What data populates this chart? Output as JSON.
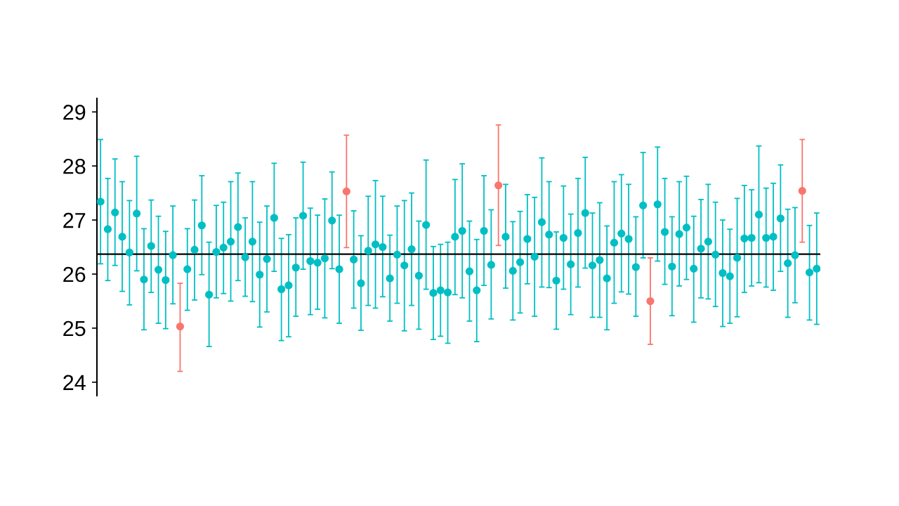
{
  "chart_data": {
    "type": "scatter",
    "categories": [
      null,
      null,
      null,
      null,
      null,
      null,
      null,
      null,
      null,
      null,
      null,
      null,
      null,
      null,
      null,
      null,
      null,
      null,
      null,
      null,
      null,
      null,
      null,
      null,
      null,
      null,
      null,
      null,
      null,
      null,
      null,
      null,
      null,
      null,
      null,
      null,
      null,
      null,
      null,
      null,
      null,
      null,
      null,
      null,
      null,
      null,
      null,
      null,
      null,
      null,
      null,
      null,
      null,
      null,
      null,
      null,
      null,
      null,
      null,
      null,
      null,
      null,
      null,
      null,
      null,
      null,
      null,
      null,
      null,
      null,
      null,
      null,
      null,
      null,
      null,
      null,
      null,
      null,
      null,
      null,
      null,
      null,
      null,
      null,
      null,
      null,
      null,
      null,
      null,
      null,
      null,
      null,
      null,
      null,
      null,
      null,
      null,
      null,
      null,
      null
    ],
    "values": [
      27.34,
      26.83,
      27.14,
      26.69,
      26.4,
      27.12,
      25.9,
      26.52,
      26.08,
      25.89,
      26.35,
      25.03,
      26.09,
      26.45,
      26.9,
      25.62,
      26.41,
      26.49,
      26.6,
      26.87,
      26.31,
      26.6,
      25.99,
      26.28,
      27.04,
      25.72,
      25.79,
      26.12,
      27.08,
      26.24,
      26.21,
      26.29,
      26.99,
      26.09,
      27.53,
      26.27,
      25.83,
      26.43,
      26.55,
      26.5,
      25.92,
      26.36,
      26.16,
      26.46,
      25.97,
      26.91,
      25.65,
      25.7,
      25.66,
      26.69,
      26.8,
      26.05,
      25.7,
      26.8,
      26.17,
      27.64,
      26.69,
      26.06,
      26.22,
      26.65,
      26.32,
      26.96,
      26.73,
      25.88,
      26.67,
      26.18,
      26.76,
      27.13,
      26.16,
      26.26,
      25.92,
      26.58,
      26.75,
      26.65,
      26.13,
      27.27,
      25.5,
      27.29,
      26.78,
      26.14,
      26.74,
      26.86,
      26.1,
      26.47,
      26.6,
      26.36,
      26.02,
      25.96,
      26.3,
      26.66,
      26.67,
      27.1,
      26.67,
      26.69,
      27.03,
      26.2,
      26.35,
      27.54,
      26.03,
      26.1
    ],
    "errors": [
      [
        26.19,
        28.49
      ],
      [
        25.88,
        27.77
      ],
      [
        26.16,
        28.13
      ],
      [
        25.68,
        27.71
      ],
      [
        25.43,
        27.36
      ],
      [
        26.06,
        28.18
      ],
      [
        24.97,
        26.84
      ],
      [
        25.66,
        27.37
      ],
      [
        25.09,
        27.07
      ],
      [
        24.99,
        26.79
      ],
      [
        25.45,
        27.26
      ],
      [
        24.2,
        25.83
      ],
      [
        25.33,
        26.84
      ],
      [
        25.52,
        27.37
      ],
      [
        25.99,
        27.82
      ],
      [
        24.66,
        26.59
      ],
      [
        25.56,
        27.27
      ],
      [
        25.64,
        27.33
      ],
      [
        25.5,
        27.71
      ],
      [
        25.88,
        27.87
      ],
      [
        25.59,
        27.04
      ],
      [
        25.49,
        27.71
      ],
      [
        25.02,
        26.96
      ],
      [
        25.3,
        27.26
      ],
      [
        26.05,
        28.05
      ],
      [
        24.77,
        26.66
      ],
      [
        24.84,
        26.73
      ],
      [
        25.22,
        27.04
      ],
      [
        26.09,
        28.07
      ],
      [
        25.25,
        27.22
      ],
      [
        25.35,
        27.09
      ],
      [
        25.19,
        27.39
      ],
      [
        26.1,
        27.89
      ],
      [
        25.09,
        27.09
      ],
      [
        26.49,
        28.57
      ],
      [
        25.37,
        27.17
      ],
      [
        24.96,
        26.71
      ],
      [
        25.42,
        27.44
      ],
      [
        25.37,
        27.73
      ],
      [
        25.58,
        27.44
      ],
      [
        25.13,
        26.72
      ],
      [
        25.46,
        27.26
      ],
      [
        24.95,
        27.36
      ],
      [
        25.42,
        27.5
      ],
      [
        24.98,
        26.98
      ],
      [
        25.72,
        28.11
      ],
      [
        24.79,
        26.51
      ],
      [
        24.85,
        26.55
      ],
      [
        24.72,
        26.59
      ],
      [
        25.62,
        27.75
      ],
      [
        25.56,
        28.04
      ],
      [
        25.13,
        26.98
      ],
      [
        24.75,
        26.64
      ],
      [
        25.79,
        27.82
      ],
      [
        25.17,
        27.19
      ],
      [
        26.53,
        28.76
      ],
      [
        25.74,
        27.66
      ],
      [
        25.15,
        26.97
      ],
      [
        25.28,
        27.16
      ],
      [
        25.82,
        27.47
      ],
      [
        25.22,
        27.42
      ],
      [
        25.76,
        28.15
      ],
      [
        25.75,
        27.71
      ],
      [
        24.98,
        26.78
      ],
      [
        25.72,
        27.63
      ],
      [
        25.25,
        27.11
      ],
      [
        25.76,
        27.77
      ],
      [
        26.11,
        28.16
      ],
      [
        25.2,
        27.13
      ],
      [
        25.2,
        27.32
      ],
      [
        24.97,
        26.89
      ],
      [
        25.46,
        27.71
      ],
      [
        25.67,
        27.84
      ],
      [
        25.63,
        27.66
      ],
      [
        25.22,
        27.06
      ],
      [
        26.3,
        28.25
      ],
      [
        24.7,
        26.3
      ],
      [
        26.24,
        28.35
      ],
      [
        25.81,
        27.77
      ],
      [
        25.23,
        27.06
      ],
      [
        25.78,
        27.71
      ],
      [
        25.9,
        27.81
      ],
      [
        25.11,
        27.07
      ],
      [
        25.56,
        27.38
      ],
      [
        25.54,
        27.66
      ],
      [
        25.4,
        27.33
      ],
      [
        25.03,
        27.0
      ],
      [
        25.09,
        26.83
      ],
      [
        25.21,
        27.4
      ],
      [
        25.66,
        27.64
      ],
      [
        25.78,
        27.56
      ],
      [
        25.84,
        28.37
      ],
      [
        25.76,
        27.59
      ],
      [
        25.7,
        27.68
      ],
      [
        26.05,
        28.02
      ],
      [
        25.2,
        27.2
      ],
      [
        25.47,
        27.23
      ],
      [
        26.59,
        28.49
      ],
      [
        25.15,
        26.9
      ],
      [
        25.07,
        27.13
      ]
    ],
    "colors": [
      "#00bfc4",
      "#00bfc4",
      "#00bfc4",
      "#00bfc4",
      "#00bfc4",
      "#00bfc4",
      "#00bfc4",
      "#00bfc4",
      "#00bfc4",
      "#00bfc4",
      "#00bfc4",
      "#f8766d",
      "#00bfc4",
      "#00bfc4",
      "#00bfc4",
      "#00bfc4",
      "#00bfc4",
      "#00bfc4",
      "#00bfc4",
      "#00bfc4",
      "#00bfc4",
      "#00bfc4",
      "#00bfc4",
      "#00bfc4",
      "#00bfc4",
      "#00bfc4",
      "#00bfc4",
      "#00bfc4",
      "#00bfc4",
      "#00bfc4",
      "#00bfc4",
      "#00bfc4",
      "#00bfc4",
      "#00bfc4",
      "#f8766d",
      "#00bfc4",
      "#00bfc4",
      "#00bfc4",
      "#00bfc4",
      "#00bfc4",
      "#00bfc4",
      "#00bfc4",
      "#00bfc4",
      "#00bfc4",
      "#00bfc4",
      "#00bfc4",
      "#00bfc4",
      "#00bfc4",
      "#00bfc4",
      "#00bfc4",
      "#00bfc4",
      "#00bfc4",
      "#00bfc4",
      "#00bfc4",
      "#00bfc4",
      "#f8766d",
      "#00bfc4",
      "#00bfc4",
      "#00bfc4",
      "#00bfc4",
      "#00bfc4",
      "#00bfc4",
      "#00bfc4",
      "#00bfc4",
      "#00bfc4",
      "#00bfc4",
      "#00bfc4",
      "#00bfc4",
      "#00bfc4",
      "#00bfc4",
      "#00bfc4",
      "#00bfc4",
      "#00bfc4",
      "#00bfc4",
      "#00bfc4",
      "#00bfc4",
      "#f8766d",
      "#00bfc4",
      "#00bfc4",
      "#00bfc4",
      "#00bfc4",
      "#00bfc4",
      "#00bfc4",
      "#00bfc4",
      "#00bfc4",
      "#00bfc4",
      "#00bfc4",
      "#00bfc4",
      "#00bfc4",
      "#00bfc4",
      "#00bfc4",
      "#00bfc4",
      "#00bfc4",
      "#00bfc4",
      "#00bfc4",
      "#00bfc4",
      "#00bfc4",
      "#f8766d",
      "#00bfc4",
      "#00bfc4"
    ],
    "ylim": [
      23.75,
      29.25
    ],
    "yticks": [
      24,
      25,
      26,
      27,
      28,
      29
    ],
    "tick_labels": "y",
    "grid": false,
    "marker": "circle",
    "ref_lines": [
      {
        "axis": "y",
        "value": 26.37,
        "color": "#000000"
      }
    ]
  }
}
